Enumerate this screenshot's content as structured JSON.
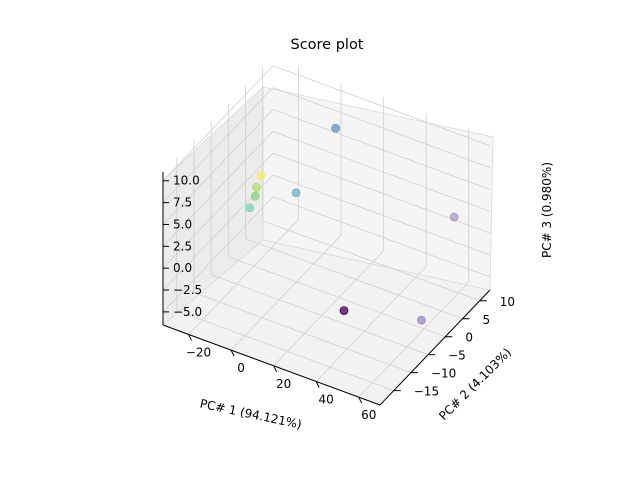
{
  "chart_data": {
    "type": "scatter",
    "projection": "3d",
    "title": "Score plot",
    "xlabel": "PC# 1 (94.121%)",
    "ylabel": "PC# 2 (4.103%)",
    "zlabel": "PC# 3 (0.980%)",
    "grid": true,
    "colormap": "viridis",
    "x_ticks": [
      "−20",
      "0",
      "20",
      "40",
      "60"
    ],
    "y_ticks": [
      "−15",
      "−10",
      "−5",
      "0",
      "5",
      "10"
    ],
    "z_ticks": [
      "−5.0",
      "−2.5",
      "0.0",
      "2.5",
      "5.0",
      "7.5",
      "10.0"
    ],
    "points": [
      {
        "x": 45,
        "y": -14,
        "z": 0.0,
        "color": "#440154"
      },
      {
        "x": 62,
        "y": -2,
        "z": -4.5,
        "color": "#9e88c0"
      },
      {
        "x": 58,
        "y": 10,
        "z": 2.0,
        "color": "#a895c8"
      },
      {
        "x": 12,
        "y": 4,
        "z": 10.5,
        "color": "#6791b8"
      },
      {
        "x": -5,
        "y": 3,
        "z": 2.0,
        "color": "#73b0c6"
      },
      {
        "x": -22,
        "y": 0,
        "z": 0.0,
        "color": "#7fd0b6"
      },
      {
        "x": -21,
        "y": 1,
        "z": 1.0,
        "color": "#8bd47d"
      },
      {
        "x": -22,
        "y": 2,
        "z": 1.5,
        "color": "#b0dc6d"
      },
      {
        "x": -20,
        "y": 2,
        "z": 3.0,
        "color": "#f5ec6a"
      }
    ]
  }
}
